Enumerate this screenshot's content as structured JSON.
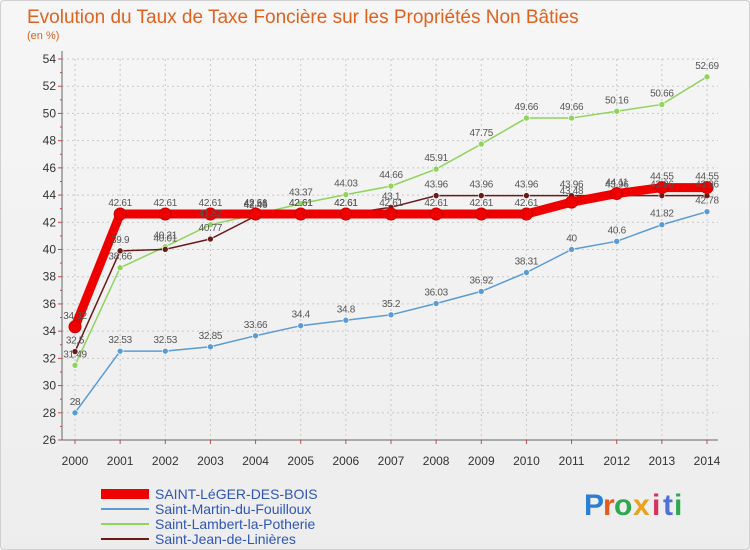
{
  "chart_data": {
    "type": "line",
    "title": "Evolution du Taux de Taxe Foncière sur les Propriétés Non Bâties",
    "subtitle": "(en %)",
    "xlabel": "",
    "ylabel": "(en %)",
    "ylim": [
      26,
      54
    ],
    "ytick_step": 2,
    "grid": true,
    "legend_position": "bottom-left",
    "x": [
      "2000",
      "2001",
      "2002",
      "2003",
      "2004",
      "2005",
      "2006",
      "2007",
      "2008",
      "2009",
      "2010",
      "2011",
      "2012",
      "2013",
      "2014"
    ],
    "series": [
      {
        "name": "SAINT-LéGER-DES-BOIS",
        "color": "#ee0000",
        "thick": true,
        "values": [
          34.32,
          42.61,
          42.61,
          42.61,
          42.61,
          42.61,
          42.61,
          42.61,
          42.61,
          42.61,
          42.61,
          43.48,
          44.11,
          44.55,
          44.55
        ]
      },
      {
        "name": "Saint-Martin-du-Fouilloux",
        "color": "#5b9bd5",
        "thick": false,
        "values": [
          28,
          32.53,
          32.53,
          32.85,
          33.66,
          34.4,
          34.8,
          35.2,
          36.03,
          36.92,
          38.31,
          40,
          40.6,
          41.82,
          42.78
        ]
      },
      {
        "name": "Saint-Lambert-la-Potherie",
        "color": "#8fd45c",
        "thick": false,
        "values": [
          31.49,
          38.66,
          40.21,
          41.82,
          42.56,
          43.37,
          44.03,
          44.66,
          45.91,
          47.75,
          49.66,
          49.66,
          50.16,
          50.66,
          52.69
        ]
      },
      {
        "name": "Saint-Jean-de-Linières",
        "color": "#6b1a1a",
        "thick": false,
        "values": [
          32.5,
          39.9,
          40.01,
          40.77,
          42.46,
          42.61,
          42.61,
          43.1,
          43.96,
          43.96,
          43.96,
          43.96,
          43.96,
          43.96,
          43.96
        ]
      }
    ]
  },
  "logo": {
    "text": "Proxiti",
    "letters": [
      "P",
      "r",
      "o",
      "x",
      "i",
      "t",
      "i"
    ]
  }
}
